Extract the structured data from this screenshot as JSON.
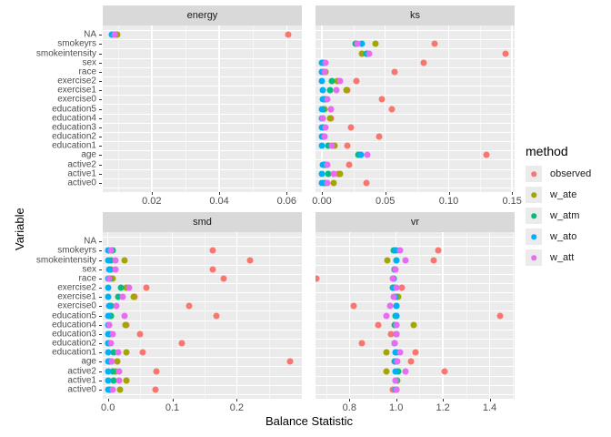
{
  "chart_data": {
    "type": "scatter",
    "title": "",
    "xlabel": "Balance Statistic",
    "ylabel": "Variable",
    "grid": "on",
    "legend": {
      "title": "method",
      "position": "right",
      "entries": [
        {
          "name": "observed",
          "color": "#F8766D"
        },
        {
          "name": "w_ate",
          "color": "#A3A500"
        },
        {
          "name": "w_atm",
          "color": "#00BF7D"
        },
        {
          "name": "w_ato",
          "color": "#00B0F6"
        },
        {
          "name": "w_att",
          "color": "#E76BF3"
        }
      ]
    },
    "categories": [
      "NA",
      "smokeyrs",
      "smokeintensity",
      "sex",
      "race",
      "exercise2",
      "exercise1",
      "exercise0",
      "education5",
      "education4",
      "education3",
      "education2",
      "education1",
      "age",
      "active2",
      "active1",
      "active0"
    ],
    "methods": [
      "observed",
      "w_ate",
      "w_atm",
      "w_ato",
      "w_att"
    ],
    "method_colors": {
      "observed": "#F8766D",
      "w_ate": "#A3A500",
      "w_atm": "#00BF7D",
      "w_ato": "#00B0F6",
      "w_att": "#E76BF3"
    },
    "panels": [
      {
        "name": "energy",
        "xlim": [
          0.0055,
          0.0645
        ],
        "xticks": [
          0.02,
          0.04,
          0.06
        ],
        "xtick_labels": [
          "0.02",
          "0.04",
          "0.06"
        ],
        "minor_ticks": [
          0.01,
          0.03,
          0.05
        ],
        "series": {
          "observed": [
            0.0605,
            null,
            null,
            null,
            null,
            null,
            null,
            null,
            null,
            null,
            null,
            null,
            null,
            null,
            null,
            null,
            null
          ],
          "w_ate": [
            0.0099,
            null,
            null,
            null,
            null,
            null,
            null,
            null,
            null,
            null,
            null,
            null,
            null,
            null,
            null,
            null,
            null
          ],
          "w_atm": [
            0.009,
            null,
            null,
            null,
            null,
            null,
            null,
            null,
            null,
            null,
            null,
            null,
            null,
            null,
            null,
            null,
            null
          ],
          "w_ato": [
            0.0082,
            null,
            null,
            null,
            null,
            null,
            null,
            null,
            null,
            null,
            null,
            null,
            null,
            null,
            null,
            null,
            null
          ],
          "w_att": [
            0.009,
            null,
            null,
            null,
            null,
            null,
            null,
            null,
            null,
            null,
            null,
            null,
            null,
            null,
            null,
            null,
            null
          ]
        }
      },
      {
        "name": "ks",
        "xlim": [
          -0.005,
          0.152
        ],
        "xticks": [
          0,
          0.05,
          0.1,
          0.15
        ],
        "xtick_labels": [
          "0.00",
          "0.05",
          "0.10",
          "0.15"
        ],
        "minor_ticks": [
          0.025,
          0.075,
          0.125
        ],
        "series": {
          "observed": [
            null,
            0.089,
            0.145,
            0.08,
            0.057,
            0.0275,
            0.02,
            0.0476,
            0.055,
            0.007,
            0.0232,
            0.0452,
            0.0198,
            0.13,
            0.0215,
            0.013,
            0.035
          ],
          "w_ate": [
            null,
            0.0423,
            0.0316,
            0.001,
            0.003,
            0.012,
            0.019,
            0.003,
            0.002,
            0.0065,
            0.001,
            0.001,
            0.01,
            0.03,
            0.003,
            0.0143,
            0.0095
          ],
          "w_atm": [
            null,
            0.0263,
            0.035,
            0.001,
            0.001,
            0.008,
            0.0065,
            0.002,
            0.001,
            0.001,
            0.001,
            0.001,
            0.005,
            0.029,
            0.002,
            0.005,
            0.002
          ],
          "w_ato": [
            null,
            0.0316,
            0.036,
            0.0,
            0.0,
            0.0,
            0.001,
            0.001,
            0.0,
            0.0,
            0.0,
            0.0,
            0.0,
            0.031,
            0.001,
            0.0,
            0.0
          ],
          "w_att": [
            null,
            0.028,
            0.037,
            0.003,
            0.002,
            0.0143,
            0.0118,
            0.004,
            0.007,
            0.001,
            0.003,
            0.002,
            0.008,
            0.0355,
            0.004,
            0.009,
            0.004
          ]
        }
      },
      {
        "name": "smd",
        "xlim": [
          -0.008,
          0.301
        ],
        "xticks": [
          0,
          0.1,
          0.2
        ],
        "xtick_labels": [
          "0.0",
          "0.1",
          "0.2"
        ],
        "minor_ticks": [
          0.05,
          0.15,
          0.25
        ],
        "series": {
          "observed": [
            null,
            0.162,
            0.22,
            0.1625,
            0.18,
            0.059,
            0.042,
            0.126,
            0.168,
            0.028,
            0.05,
            0.114,
            0.0535,
            0.283,
            0.0756,
            0.029,
            0.0742
          ],
          "w_ate": [
            null,
            0.006,
            0.026,
            0.004,
            0.008,
            0.028,
            0.0395,
            0.005,
            0.005,
            0.0268,
            0.003,
            0.002,
            0.028,
            0.015,
            0.012,
            0.028,
            0.019
          ],
          "w_atm": [
            null,
            0.008,
            0.005,
            0.003,
            0.003,
            0.0195,
            0.0155,
            0.004,
            0.004,
            0.002,
            0.002,
            0.001,
            0.0095,
            0.003,
            0.007,
            0.0085,
            0.003
          ],
          "w_ato": [
            null,
            0.001,
            0.001,
            0.002,
            0.001,
            0.0,
            0.001,
            0.002,
            0.001,
            0.001,
            0.001,
            0.0,
            0.0,
            0.001,
            0.001,
            0.0,
            0.001
          ],
          "w_att": [
            null,
            0.005,
            0.012,
            0.012,
            0.002,
            0.033,
            0.0225,
            0.0125,
            0.026,
            0.0014,
            0.0075,
            0.005,
            0.016,
            0.0066,
            0.018,
            0.018,
            0.007
          ]
        }
      },
      {
        "name": "vr",
        "xlim": [
          0.655,
          1.507
        ],
        "xticks": [
          0.8,
          1.0,
          1.2,
          1.4
        ],
        "xtick_labels": [
          "0.8",
          "1.0",
          "1.2",
          "1.4"
        ],
        "minor_ticks": [
          0.7,
          0.9,
          1.1,
          1.3,
          1.5
        ],
        "series": {
          "observed": [
            null,
            1.179,
            1.159,
            0.992,
            0.66,
            1.025,
            1.002,
            0.817,
            1.444,
            0.922,
            0.979,
            0.852,
            1.081,
            1.065,
            1.208,
            1.0,
            0.985
          ],
          "w_ate": [
            null,
            1.0,
            0.963,
            0.992,
            0.99,
            0.992,
            1.007,
            1.0,
            1.0,
            1.075,
            1.0,
            0.995,
            0.957,
            1.0,
            0.957,
            1.005,
            1.0
          ],
          "w_atm": [
            null,
            0.99,
            1.0,
            0.992,
            0.99,
            0.985,
            0.996,
            1.0,
            0.998,
            0.994,
            1.0,
            0.995,
            1.0,
            0.993,
            1.01,
            1.0,
            1.0
          ],
          "w_ato": [
            null,
            0.997,
            1.0,
            0.992,
            0.99,
            0.99,
            0.996,
            1.0,
            1.0,
            1.0,
            1.0,
            0.995,
            0.998,
            0.997,
            0.998,
            0.996,
            0.998
          ],
          "w_att": [
            null,
            1.018,
            1.039,
            0.996,
            0.987,
            1.0,
            0.991,
            0.974,
            0.957,
            1.002,
            1.0,
            0.993,
            1.017,
            1.003,
            1.04,
            0.997,
            1.002
          ]
        }
      }
    ],
    "colors": {
      "panel_background": "#EBEBEB",
      "strip_background": "#D9D9D9",
      "gridline": "#FFFFFF",
      "tick_text": "#4D4D4D"
    }
  }
}
